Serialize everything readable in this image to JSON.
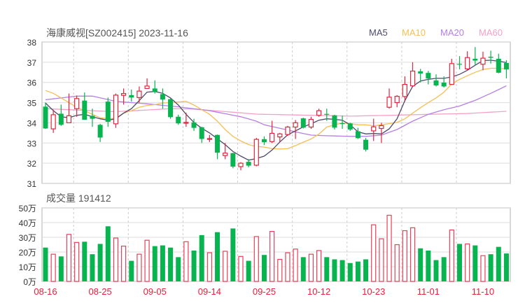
{
  "chart_data": {
    "type": "candlestick",
    "title": "海康威视[SZ002415] 2023-11-16",
    "price_axis": {
      "ylim": [
        31,
        38
      ],
      "ticks": [
        31,
        32,
        33,
        34,
        35,
        36,
        37,
        38
      ]
    },
    "legend": [
      {
        "name": "MA5",
        "color": "#4b4a6e"
      },
      {
        "name": "MA10",
        "color": "#f5bf55"
      },
      {
        "name": "MA20",
        "color": "#b57fe6"
      },
      {
        "name": "MA60",
        "color": "#f6a0c6"
      }
    ],
    "colors": {
      "up": "#e5253f",
      "down": "#08b450"
    },
    "x_labels": [
      {
        "index": 0,
        "label": "08-16"
      },
      {
        "index": 7,
        "label": "08-25"
      },
      {
        "index": 14,
        "label": "09-05"
      },
      {
        "index": 21,
        "label": "09-14"
      },
      {
        "index": 28,
        "label": "09-25"
      },
      {
        "index": 35,
        "label": "10-12"
      },
      {
        "index": 42,
        "label": "10-23"
      },
      {
        "index": 49,
        "label": "11-01"
      },
      {
        "index": 56,
        "label": "11-10"
      }
    ],
    "ohlc": [
      [
        34.8,
        35.0,
        33.7,
        33.72
      ],
      [
        33.7,
        34.65,
        33.5,
        34.4
      ],
      [
        34.45,
        34.9,
        33.85,
        33.9
      ],
      [
        34.0,
        35.45,
        34.0,
        34.35
      ],
      [
        34.7,
        35.35,
        34.3,
        35.2
      ],
      [
        35.1,
        35.5,
        34.15,
        34.15
      ],
      [
        34.35,
        34.7,
        33.8,
        34.2
      ],
      [
        33.9,
        33.95,
        33.05,
        33.27
      ],
      [
        35.05,
        35.25,
        33.8,
        34.05
      ],
      [
        33.95,
        35.45,
        33.75,
        35.37
      ],
      [
        35.36,
        35.7,
        34.9,
        35.45
      ],
      [
        35.37,
        35.65,
        35.05,
        35.25
      ],
      [
        35.25,
        35.8,
        35.0,
        35.57
      ],
      [
        35.7,
        36.2,
        35.68,
        35.82
      ],
      [
        35.7,
        36.1,
        35.45,
        35.52
      ],
      [
        35.42,
        35.7,
        34.7,
        35.15
      ],
      [
        35.17,
        35.2,
        34.2,
        34.28
      ],
      [
        34.3,
        34.4,
        33.9,
        33.97
      ],
      [
        33.98,
        34.5,
        33.8,
        34.02
      ],
      [
        34.02,
        34.2,
        33.6,
        33.75
      ],
      [
        33.78,
        33.8,
        33.0,
        33.2
      ],
      [
        33.19,
        33.4,
        33.05,
        33.22
      ],
      [
        33.4,
        33.42,
        32.2,
        32.52
      ],
      [
        32.38,
        33.0,
        32.2,
        32.5
      ],
      [
        32.5,
        32.52,
        31.75,
        31.83
      ],
      [
        31.83,
        32.05,
        31.65,
        32.0
      ],
      [
        32.07,
        32.2,
        31.8,
        31.88
      ],
      [
        31.9,
        33.25,
        31.85,
        33.18
      ],
      [
        33.19,
        33.33,
        32.9,
        33.04
      ],
      [
        33.07,
        34.1,
        33.0,
        33.48
      ],
      [
        33.3,
        33.5,
        33.05,
        33.45
      ],
      [
        33.42,
        33.85,
        33.35,
        33.79
      ],
      [
        33.79,
        34.14,
        33.2,
        34.0
      ],
      [
        34.22,
        34.25,
        33.72,
        33.76
      ],
      [
        33.79,
        34.3,
        33.7,
        34.17
      ],
      [
        34.37,
        34.7,
        34.3,
        34.6
      ],
      [
        34.44,
        34.7,
        34.1,
        34.42
      ],
      [
        34.37,
        34.4,
        33.67,
        33.76
      ],
      [
        33.98,
        34.35,
        33.7,
        33.95
      ],
      [
        33.97,
        34.0,
        33.6,
        33.67
      ],
      [
        33.58,
        33.75,
        33.2,
        33.24
      ],
      [
        33.16,
        33.25,
        32.58,
        32.67
      ],
      [
        33.6,
        34.2,
        33.1,
        33.8
      ],
      [
        33.72,
        34.0,
        33.0,
        33.86
      ],
      [
        34.77,
        35.7,
        34.7,
        35.27
      ],
      [
        35.0,
        35.37,
        34.77,
        35.31
      ],
      [
        35.3,
        36.3,
        35.05,
        35.9
      ],
      [
        35.83,
        37.0,
        35.8,
        36.56
      ],
      [
        36.55,
        36.67,
        36.0,
        36.44
      ],
      [
        36.47,
        36.57,
        35.9,
        36.19
      ],
      [
        36.1,
        36.4,
        35.8,
        35.85
      ],
      [
        35.99,
        36.3,
        35.75,
        35.8
      ],
      [
        35.9,
        37.17,
        35.9,
        36.93
      ],
      [
        36.92,
        37.3,
        36.65,
        36.88
      ],
      [
        36.67,
        37.54,
        36.6,
        37.23
      ],
      [
        37.17,
        37.75,
        36.88,
        37.08
      ],
      [
        36.9,
        37.52,
        36.6,
        37.2
      ],
      [
        37.27,
        37.57,
        36.93,
        37.22
      ],
      [
        37.17,
        37.42,
        36.45,
        36.48
      ],
      [
        36.96,
        37.1,
        36.2,
        36.64
      ]
    ],
    "ma5": [
      34.98,
      34.6,
      34.3,
      34.25,
      34.37,
      34.42,
      34.3,
      34.2,
      34.13,
      34.2,
      34.48,
      34.7,
      35.1,
      35.52,
      35.55,
      35.46,
      35.23,
      34.88,
      34.42,
      34.02,
      33.73,
      33.5,
      33.21,
      32.92,
      32.58,
      32.35,
      32.15,
      32.23,
      32.35,
      32.65,
      33.05,
      33.4,
      33.6,
      33.8,
      33.95,
      34.13,
      34.2,
      34.17,
      34.13,
      33.9,
      33.55,
      33.45,
      33.47,
      33.45,
      33.7,
      34.2,
      35.1,
      35.8,
      36.07,
      36.15,
      36.2,
      36.2,
      36.27,
      36.4,
      36.6,
      36.85,
      37.08,
      37.1,
      37.05,
      36.98
    ],
    "ma10": [
      35.6,
      35.46,
      35.23,
      35.0,
      34.77,
      34.6,
      34.42,
      34.25,
      34.2,
      34.22,
      34.48,
      34.6,
      34.77,
      34.86,
      34.9,
      34.98,
      35.0,
      35.03,
      35.06,
      34.88,
      34.65,
      34.42,
      34.08,
      33.67,
      33.33,
      33.1,
      32.92,
      32.83,
      32.8,
      32.72,
      32.7,
      32.72,
      32.87,
      33.04,
      33.2,
      33.44,
      33.79,
      33.9,
      33.99,
      33.96,
      33.9,
      33.9,
      33.85,
      33.9,
      33.96,
      34.02,
      34.2,
      34.48,
      34.75,
      35.0,
      35.23,
      35.52,
      35.92,
      36.15,
      36.33,
      36.5,
      36.64,
      36.7,
      36.7,
      36.67
    ],
    "ma20_points": [
      [
        0,
        35.14
      ],
      [
        4,
        35.32
      ],
      [
        6,
        35.32
      ],
      [
        9,
        35.06
      ],
      [
        13,
        34.94
      ],
      [
        17,
        34.79
      ],
      [
        21,
        34.6
      ],
      [
        25,
        34.3
      ],
      [
        27,
        34.08
      ],
      [
        28,
        33.9
      ],
      [
        30,
        33.73
      ],
      [
        32,
        33.55
      ],
      [
        34,
        33.39
      ],
      [
        36,
        33.36
      ],
      [
        39,
        33.33
      ],
      [
        41,
        33.33
      ],
      [
        43,
        33.39
      ],
      [
        45,
        33.67
      ],
      [
        47,
        34.08
      ],
      [
        49,
        34.42
      ],
      [
        51,
        34.65
      ],
      [
        53,
        34.83
      ],
      [
        55,
        35.11
      ],
      [
        57,
        35.46
      ],
      [
        59,
        35.83
      ]
    ],
    "ma60_points": [
      [
        0,
        34.7
      ],
      [
        9,
        34.55
      ],
      [
        16,
        34.7
      ],
      [
        19,
        34.68
      ],
      [
        27,
        34.43
      ],
      [
        39,
        34.33
      ],
      [
        44,
        34.37
      ],
      [
        49,
        34.42
      ],
      [
        54,
        34.46
      ],
      [
        59,
        34.57
      ]
    ],
    "volume": {
      "label": "成交量 191412",
      "ylim": [
        0,
        50
      ],
      "tick_labels": [
        "0万",
        "10万",
        "20万",
        "30万",
        "40万",
        "50万"
      ],
      "unit": "万",
      "values": [
        23,
        18.5,
        17,
        32,
        26.5,
        27,
        18.5,
        25.5,
        37.5,
        29.5,
        24,
        14,
        18.5,
        28,
        24,
        24.5,
        23,
        16.5,
        27,
        21,
        31.5,
        19.5,
        33.5,
        20.5,
        36,
        17,
        14,
        30.5,
        18,
        34,
        15,
        19.5,
        22,
        16.5,
        18.5,
        21,
        16.5,
        15,
        14.5,
        12.5,
        13.5,
        15,
        38.5,
        29,
        45,
        25,
        34.5,
        36.5,
        22.5,
        21,
        14.5,
        16.5,
        35,
        25.5,
        25.5,
        24.5,
        17.5,
        18.5,
        23.5,
        19
      ]
    }
  }
}
